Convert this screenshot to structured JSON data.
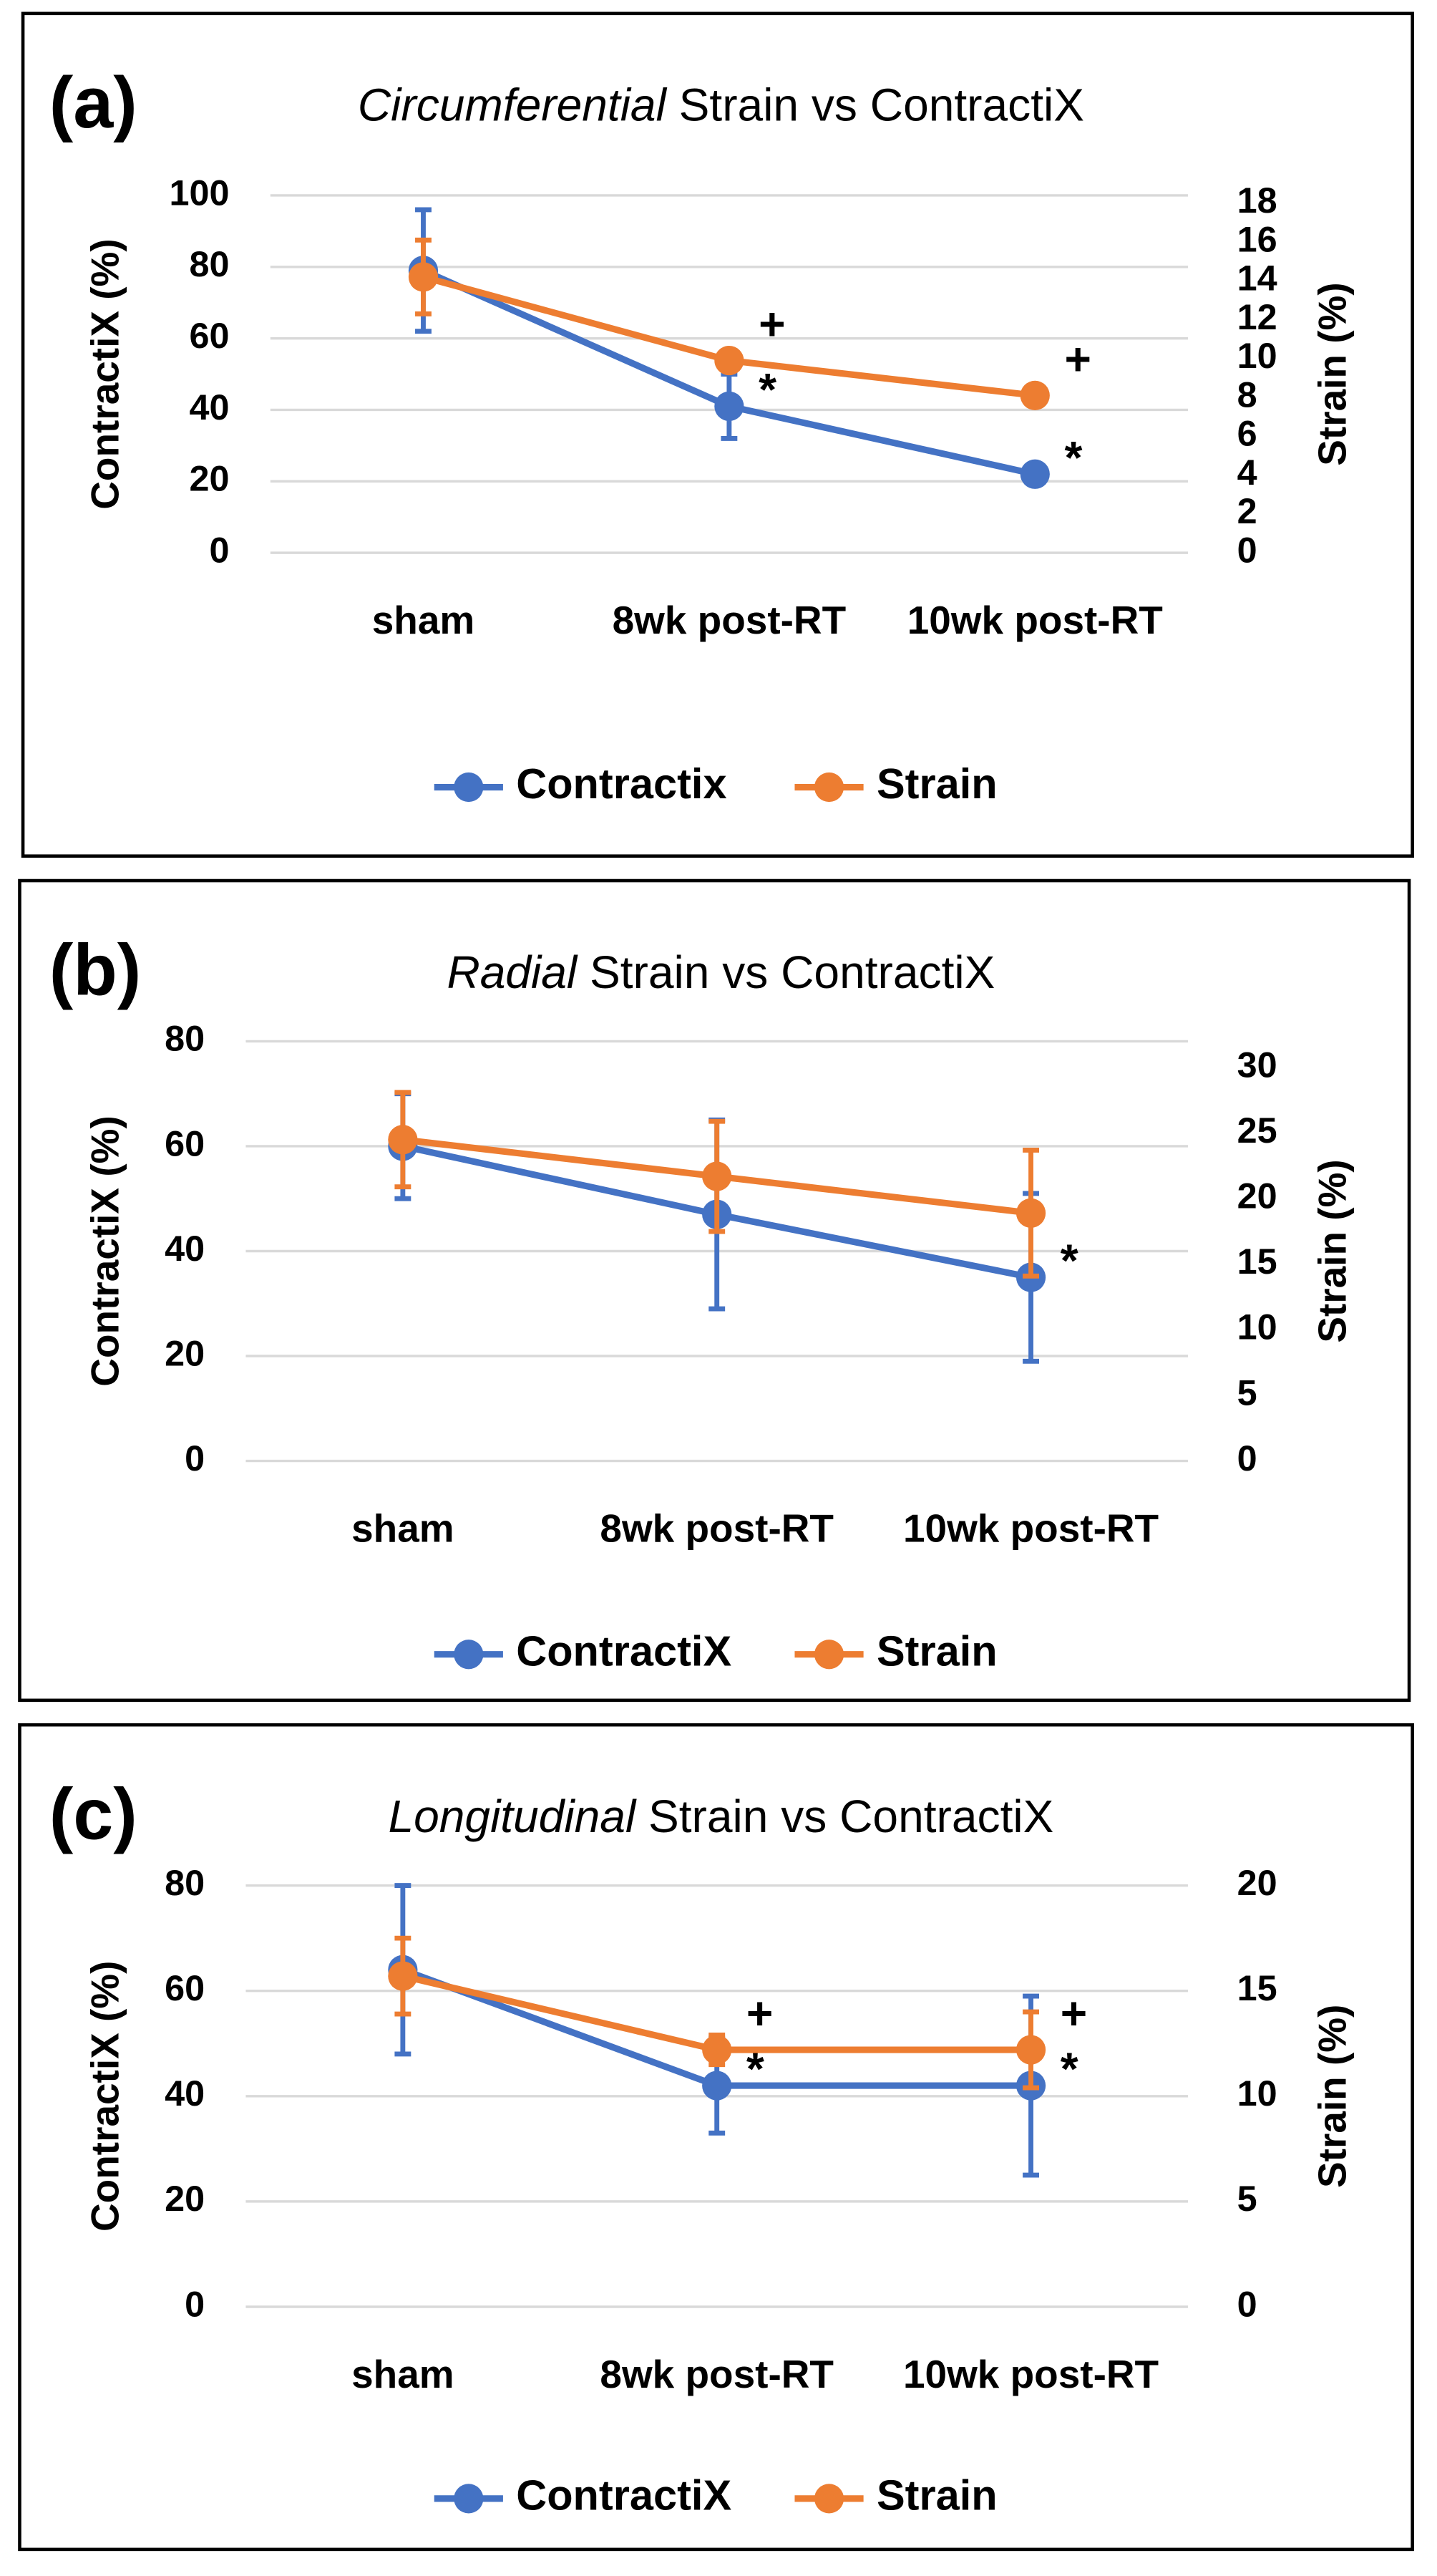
{
  "chart_data": [
    {
      "type": "line",
      "panel": "(a)",
      "title": {
        "emphasis": "Circumferential",
        "rest": "Strain vs ContractiX"
      },
      "y_label": "ContractiX (%)",
      "y2_label": "Strain (%)",
      "categories": [
        "sham",
        "8wk post-RT",
        "10wk post-RT"
      ],
      "ylim": [
        0,
        100
      ],
      "yticks": [
        0,
        20,
        40,
        60,
        80,
        100
      ],
      "y2lim": [
        0,
        18.4
      ],
      "y2ticks": [
        0,
        2,
        4,
        6,
        8,
        10,
        12,
        14,
        16,
        18
      ],
      "grid": true,
      "legend": "bottom",
      "series": [
        {
          "name": "Contractix",
          "color": "#4472c4",
          "values": [
            79,
            41,
            22
          ],
          "errors": [
            17,
            9,
            2
          ],
          "markers": [
            null,
            "*",
            "*"
          ]
        },
        {
          "name": "Strain",
          "color": "#ed7d31",
          "axis": "y2",
          "values": [
            14.2,
            9.9,
            8.1
          ],
          "errors": [
            1.9,
            0.5,
            0.2
          ],
          "markers": [
            null,
            "+",
            "+"
          ]
        }
      ]
    },
    {
      "type": "line",
      "panel": "(b)",
      "title": {
        "emphasis": "Radial",
        "rest": "Strain vs ContractiX"
      },
      "y_label": "ContractiX (%)",
      "y2_label": "Strain (%)",
      "categories": [
        "sham",
        "8wk post-RT",
        "10wk post-RT"
      ],
      "ylim": [
        0,
        80
      ],
      "yticks": [
        0,
        20,
        40,
        60,
        80
      ],
      "y2lim": [
        0,
        32
      ],
      "y2ticks": [
        0,
        5,
        10,
        15,
        20,
        25,
        30
      ],
      "grid": true,
      "legend": "bottom",
      "series": [
        {
          "name": "ContractiX",
          "color": "#4472c4",
          "values": [
            60,
            47,
            35
          ],
          "errors": [
            10,
            18,
            16
          ],
          "markers": [
            null,
            null,
            "*"
          ]
        },
        {
          "name": "Strain",
          "color": "#ed7d31",
          "axis": "y2",
          "values": [
            24.5,
            21.7,
            18.9
          ],
          "errors": [
            3.6,
            4.2,
            4.8
          ],
          "markers": [
            null,
            null,
            null
          ]
        }
      ]
    },
    {
      "type": "line",
      "panel": "(c)",
      "title": {
        "emphasis": "Longitudinal",
        "rest": "Strain vs ContractiX"
      },
      "y_label": "ContractiX (%)",
      "y2_label": "Strain (%)",
      "categories": [
        "sham",
        "8wk post-RT",
        "10wk post-RT"
      ],
      "ylim": [
        0,
        80
      ],
      "yticks": [
        0,
        20,
        40,
        60,
        80
      ],
      "y2lim": [
        0,
        20
      ],
      "y2ticks": [
        0,
        5,
        10,
        15,
        20
      ],
      "grid": true,
      "legend": "bottom",
      "series": [
        {
          "name": "ContractiX",
          "color": "#4472c4",
          "values": [
            64,
            42,
            42
          ],
          "errors": [
            16,
            9,
            17
          ],
          "markers": [
            null,
            "*",
            "*"
          ]
        },
        {
          "name": "Strain",
          "color": "#ed7d31",
          "axis": "y2",
          "values": [
            15.7,
            12.2,
            12.2
          ],
          "errors": [
            1.8,
            0.7,
            1.8
          ],
          "markers": [
            null,
            "+",
            "+"
          ]
        }
      ]
    }
  ]
}
